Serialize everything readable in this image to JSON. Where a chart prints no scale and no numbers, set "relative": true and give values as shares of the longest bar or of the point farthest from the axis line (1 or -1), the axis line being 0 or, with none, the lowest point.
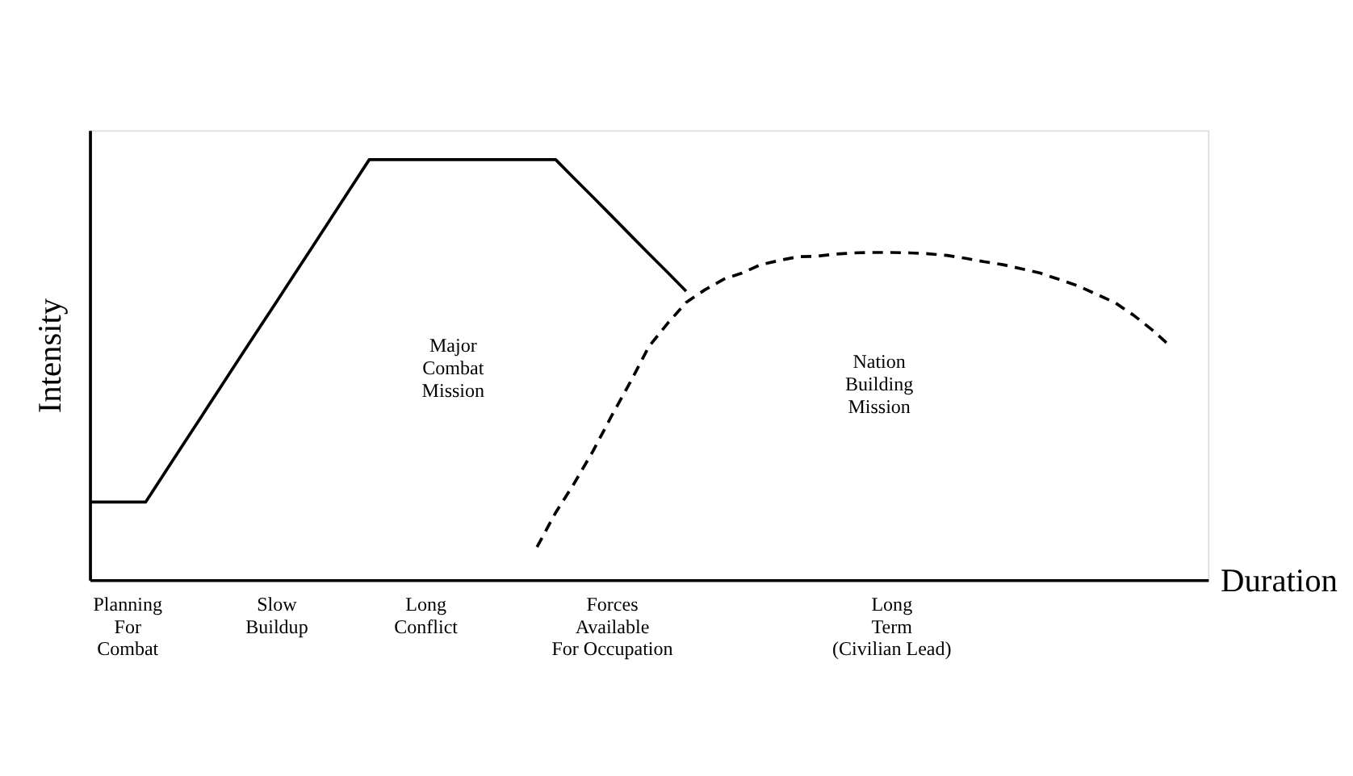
{
  "chart_data": {
    "type": "line",
    "relative": true,
    "xlabel": "Duration",
    "ylabel": "Intensity",
    "categories": [
      null,
      null,
      "Planning\nFor\nCombat",
      null,
      null,
      null,
      null,
      null,
      null,
      null,
      "Slow\nBuildup",
      null,
      null,
      null,
      null,
      null,
      null,
      null,
      "Long\nConflict",
      null,
      null,
      null,
      null,
      null,
      null,
      null,
      null,
      null,
      "Forces\nAvailable\nFor Occupation",
      null,
      null,
      null,
      null,
      null,
      null,
      null,
      null,
      null,
      null,
      null,
      null,
      null,
      null,
      "Long\nTerm\n(Civilian Lead)",
      null,
      null,
      null,
      null,
      null,
      null,
      null,
      null,
      null,
      null,
      null,
      null,
      null,
      null,
      null,
      null,
      null
    ],
    "series": [
      {
        "color": "#000000",
        "line_style": "solid",
        "values": [
          0.185,
          0.185,
          0.185,
          0.185,
          0.253,
          0.321,
          0.389,
          0.457,
          0.525,
          0.593,
          0.66,
          0.728,
          0.796,
          0.864,
          0.932,
          1,
          1,
          1,
          1,
          1,
          1,
          1,
          1,
          1,
          1,
          1,
          0.955,
          0.911,
          0.866,
          0.821,
          0.776,
          0.732,
          0.687,
          null,
          null,
          null,
          null,
          null,
          null,
          null,
          null,
          null,
          null,
          null,
          null,
          null,
          null,
          null,
          null,
          null,
          null,
          null,
          null,
          null,
          null,
          null,
          null,
          null,
          null,
          null,
          null
        ]
      },
      {
        "color": "#000000",
        "line_style": "dashed",
        "values": [
          null,
          null,
          null,
          null,
          null,
          null,
          null,
          null,
          null,
          null,
          null,
          null,
          null,
          null,
          null,
          null,
          null,
          null,
          null,
          null,
          null,
          null,
          null,
          null,
          0.078,
          0.16,
          0.23,
          0.306,
          0.39,
          0.47,
          0.555,
          0.61,
          0.66,
          0.69,
          0.715,
          0.73,
          0.75,
          0.76,
          0.769,
          0.77,
          0.775,
          0.778,
          0.779,
          0.779,
          0.778,
          0.776,
          0.772,
          0.765,
          0.757,
          0.75,
          0.74,
          0.73,
          0.715,
          0.7,
          0.68,
          0.66,
          0.63,
          0.595,
          0.555,
          null,
          null
        ]
      }
    ],
    "annotations": [
      "Major\nCombat\nMission",
      "Nation\nBuilding\nMission"
    ],
    "grid": false,
    "marker": "none"
  }
}
